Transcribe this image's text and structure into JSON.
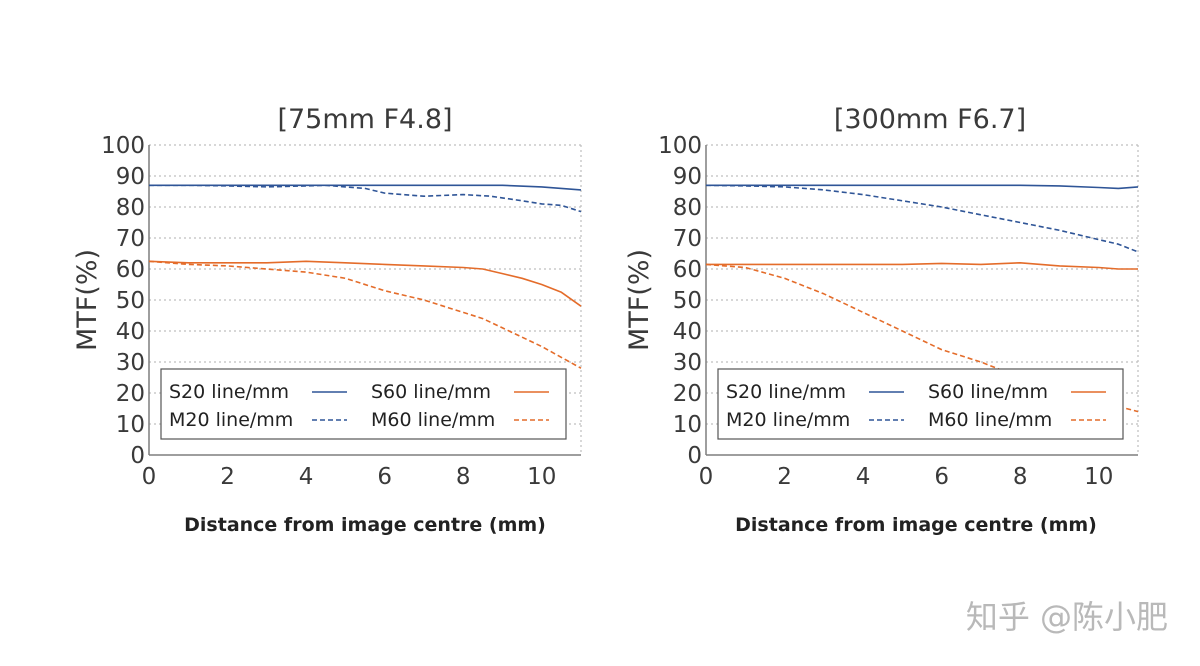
{
  "watermark": "知乎 @陈小肥",
  "colors": {
    "s20": "#2f5597",
    "m20": "#2f5597",
    "s60": "#e46c2a",
    "m60": "#e46c2a",
    "grid": "#bfbfbf",
    "axis": "#7f7f7f"
  },
  "legend_labels": {
    "s20": "S20 line/mm",
    "m20": "M20 line/mm",
    "s60": "S60 line/mm",
    "m60": "M60 line/mm"
  },
  "chart_data": [
    {
      "type": "line",
      "title": "[75mm F4.8]",
      "xlabel": "Distance from image centre (mm)",
      "ylabel": "MTF(%)",
      "xlim": [
        0,
        11
      ],
      "ylim": [
        0,
        100
      ],
      "xticks": [
        0,
        2,
        4,
        6,
        8,
        10
      ],
      "yticks": [
        0,
        10,
        20,
        30,
        40,
        50,
        60,
        70,
        80,
        90,
        100
      ],
      "grid": true,
      "legend_position": "bottom",
      "series": [
        {
          "key": "s20",
          "name": "S20 line/mm",
          "style": "solid",
          "x": [
            0,
            1,
            2,
            3,
            4,
            5,
            6,
            7,
            8,
            9,
            10,
            11
          ],
          "y": [
            87,
            87,
            87,
            87,
            87,
            87,
            87,
            87,
            87,
            87,
            86.5,
            85.5
          ]
        },
        {
          "key": "m20",
          "name": "M20 line/mm",
          "style": "dashed",
          "x": [
            0,
            1,
            2,
            3,
            4,
            4.5,
            5,
            5.5,
            6,
            7,
            8,
            8.7,
            9.5,
            10,
            10.5,
            11
          ],
          "y": [
            87,
            87,
            86.8,
            86.5,
            86.8,
            87,
            86.5,
            86,
            84.5,
            83.5,
            84,
            83.5,
            82,
            81,
            80.5,
            78.5
          ]
        },
        {
          "key": "s60",
          "name": "S60 line/mm",
          "style": "solid",
          "x": [
            0,
            1,
            2,
            3,
            4,
            5,
            6,
            7,
            8,
            8.5,
            9,
            9.5,
            10,
            10.5,
            11
          ],
          "y": [
            62.5,
            62,
            62,
            62,
            62.5,
            62,
            61.5,
            61,
            60.5,
            60,
            58.5,
            57,
            55,
            52.5,
            48
          ]
        },
        {
          "key": "m60",
          "name": "M60 line/mm",
          "style": "dashed",
          "x": [
            0,
            1,
            2,
            3,
            4,
            5,
            6,
            7,
            8,
            8.5,
            9,
            9.5,
            10,
            10.5,
            11
          ],
          "y": [
            62.5,
            61.5,
            61,
            60,
            59,
            57,
            53,
            50,
            46,
            44,
            41,
            38,
            35,
            31.5,
            28
          ]
        }
      ]
    },
    {
      "type": "line",
      "title": "[300mm F6.7]",
      "xlabel": "Distance from image centre (mm)",
      "ylabel": "MTF(%)",
      "xlim": [
        0,
        11
      ],
      "ylim": [
        0,
        100
      ],
      "xticks": [
        0,
        2,
        4,
        6,
        8,
        10
      ],
      "yticks": [
        0,
        10,
        20,
        30,
        40,
        50,
        60,
        70,
        80,
        90,
        100
      ],
      "grid": true,
      "legend_position": "bottom",
      "series": [
        {
          "key": "s20",
          "name": "S20 line/mm",
          "style": "solid",
          "x": [
            0,
            1,
            2,
            3,
            4,
            5,
            6,
            7,
            8,
            9,
            10,
            10.5,
            11
          ],
          "y": [
            87,
            87,
            87,
            87,
            87,
            87,
            87,
            87,
            87,
            86.8,
            86.3,
            86,
            86.5
          ]
        },
        {
          "key": "m20",
          "name": "M20 line/mm",
          "style": "dashed",
          "x": [
            0,
            1,
            2,
            3,
            4,
            5,
            6,
            7,
            8,
            9,
            10,
            10.5,
            11
          ],
          "y": [
            87,
            86.8,
            86.5,
            85.5,
            84,
            82,
            80,
            77.5,
            75,
            72.5,
            69.5,
            68,
            65.5
          ]
        },
        {
          "key": "s60",
          "name": "S60 line/mm",
          "style": "solid",
          "x": [
            0,
            1,
            2,
            3,
            4,
            5,
            6,
            7,
            8,
            9,
            10,
            10.5,
            11
          ],
          "y": [
            61.5,
            61.5,
            61.5,
            61.5,
            61.5,
            61.5,
            61.8,
            61.5,
            62,
            61,
            60.5,
            60,
            60
          ]
        },
        {
          "key": "m60",
          "name": "M60 line/mm",
          "style": "dashed",
          "x": [
            0,
            1,
            2,
            3,
            4,
            5,
            6,
            7,
            7.6
          ],
          "y": [
            61.5,
            60.5,
            57,
            52,
            46,
            40,
            34,
            30,
            27
          ]
        },
        {
          "key": "m60b",
          "name": "",
          "style": "dashed",
          "x": [
            10.7,
            11
          ],
          "y": [
            15,
            14
          ]
        }
      ]
    }
  ]
}
